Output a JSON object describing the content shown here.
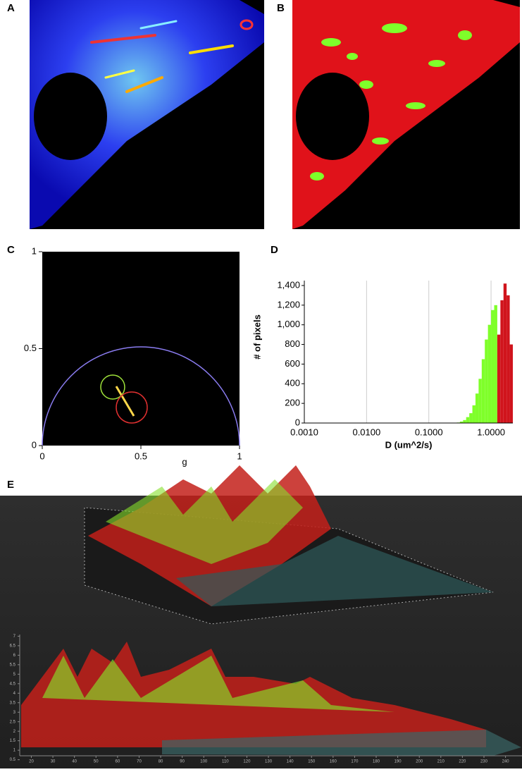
{
  "panel_labels": [
    "A",
    "B",
    "C",
    "D",
    "E"
  ],
  "chart_data": [
    {
      "type": "phasor",
      "xlabel": "g",
      "xlim": [
        0,
        1
      ],
      "ylim": [
        0,
        1
      ],
      "xticks": [
        0,
        0.5,
        1
      ],
      "yticks": [
        0,
        0.5,
        1
      ]
    },
    {
      "type": "histogram",
      "xlabel": "D (um^2/s)",
      "ylabel": "# of pixels",
      "log_x": true,
      "grid": true,
      "xlim": [
        0.001,
        2.239
      ],
      "ylim": [
        0,
        1450
      ],
      "xticks": [
        {
          "value": 0.001,
          "label": "0.0010"
        },
        {
          "value": 0.01,
          "label": "0.0100"
        },
        {
          "value": 0.1,
          "label": "0.1000"
        },
        {
          "value": 1,
          "label": "1.0000"
        }
      ],
      "yticks": [
        0,
        200,
        400,
        600,
        800,
        {
          "value": 1000,
          "label": "1,000"
        },
        {
          "value": 1200,
          "label": "1,200"
        },
        {
          "value": 1400,
          "label": "1,400"
        }
      ],
      "bins": [
        0.282,
        0.316,
        0.355,
        0.398,
        0.447,
        0.501,
        0.562,
        0.631,
        0.708,
        0.794,
        0.891,
        1.0,
        1.122,
        1.259,
        1.413,
        1.585,
        1.778,
        1.995,
        2.239
      ],
      "series": [
        {
          "color": "#7fff2a",
          "values": [
            5,
            15,
            30,
            60,
            100,
            180,
            300,
            450,
            650,
            850,
            1000,
            1150,
            1200,
            0,
            0,
            0,
            0,
            0
          ]
        },
        {
          "color": "#d0141c",
          "values": [
            0,
            0,
            0,
            0,
            0,
            0,
            0,
            0,
            0,
            0,
            0,
            0,
            0,
            900,
            1250,
            1420,
            1300,
            800
          ]
        }
      ]
    },
    {
      "type": "surface",
      "xlim": [
        12,
        247
      ],
      "ylim": [
        0.3,
        7.2
      ],
      "xticks": [
        20,
        30,
        40,
        50,
        60,
        70,
        80,
        90,
        100,
        110,
        120,
        130,
        140,
        150,
        160,
        170,
        180,
        190,
        200,
        210,
        220,
        230,
        240
      ],
      "yticks": [
        0.5,
        1,
        1.5,
        2,
        2.5,
        3,
        3.5,
        4,
        4.5,
        5,
        5.5,
        6,
        6.5,
        7
      ]
    }
  ]
}
